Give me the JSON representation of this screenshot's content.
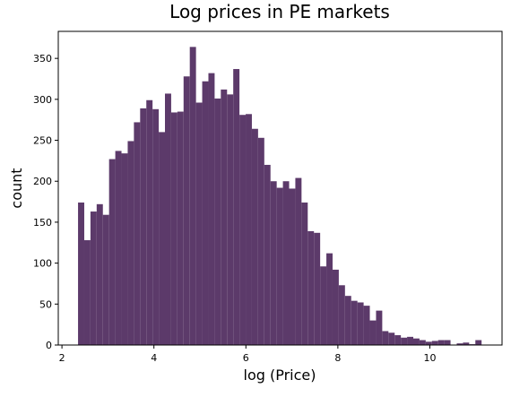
{
  "chart_data": {
    "type": "histogram",
    "title": "Log prices in PE markets",
    "xlabel": "log (Price)",
    "ylabel": "count",
    "color": "#5c3a6a",
    "bins": [
      2.35,
      2.485,
      2.62,
      2.755,
      2.89,
      3.025,
      3.16,
      3.295,
      3.43,
      3.565,
      3.7,
      3.835,
      3.97,
      4.105,
      4.24,
      4.375,
      4.51,
      4.645,
      4.78,
      4.915,
      5.05,
      5.185,
      5.32,
      5.455,
      5.59,
      5.725,
      5.86,
      5.995,
      6.13,
      6.265,
      6.4,
      6.535,
      6.67,
      6.805,
      6.94,
      7.075,
      7.21,
      7.345,
      7.48,
      7.615,
      7.75,
      7.885,
      8.02,
      8.155,
      8.29,
      8.425,
      8.56,
      8.695,
      8.83,
      8.965,
      9.1,
      9.235,
      9.37,
      9.505,
      9.64,
      9.775,
      9.91,
      10.045,
      10.18,
      10.315,
      10.45,
      10.585,
      10.72,
      10.855,
      10.99,
      11.125
    ],
    "values": [
      174,
      128,
      163,
      172,
      159,
      227,
      237,
      234,
      249,
      272,
      289,
      299,
      288,
      260,
      307,
      284,
      285,
      328,
      364,
      296,
      322,
      332,
      301,
      312,
      306,
      337,
      281,
      282,
      264,
      253,
      220,
      200,
      192,
      200,
      191,
      204,
      174,
      139,
      137,
      96,
      112,
      92,
      73,
      60,
      54,
      52,
      48,
      30,
      42,
      17,
      15,
      12,
      9,
      10,
      8,
      6,
      4,
      5,
      6,
      6,
      0,
      2,
      3,
      1,
      6
    ],
    "xlim": [
      1.92,
      11.57
    ],
    "ylim": [
      0,
      383
    ],
    "xticks": [
      2,
      4,
      6,
      8,
      10
    ],
    "yticks": [
      0,
      50,
      100,
      150,
      200,
      250,
      300,
      350
    ]
  }
}
